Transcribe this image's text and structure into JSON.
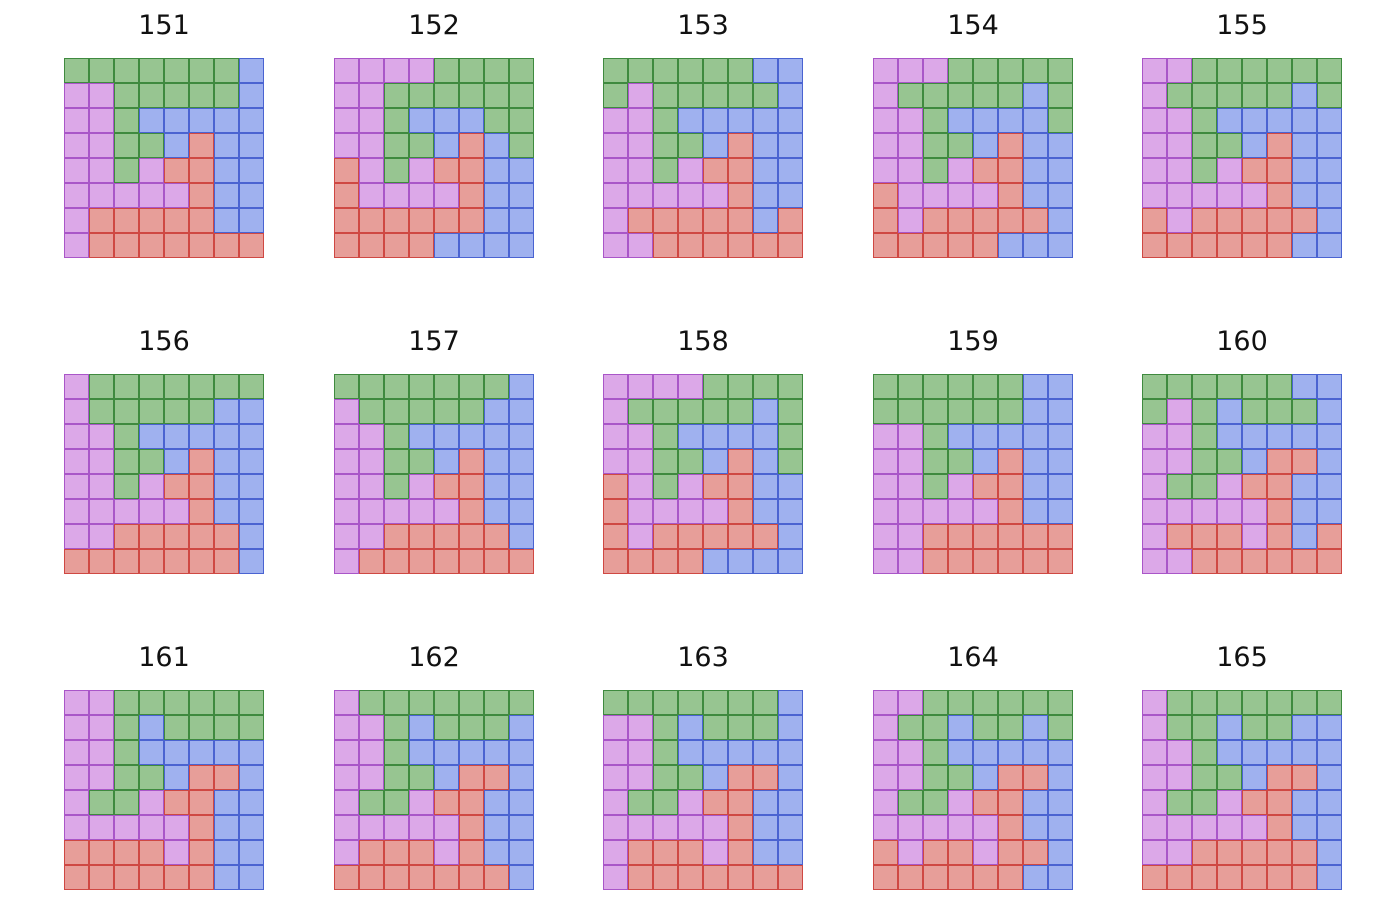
{
  "colors": {
    "G": {
      "fill": "#97c591",
      "line": "#3f8a3f"
    },
    "B": {
      "fill": "#9fb1ef",
      "line": "#4a63d1"
    },
    "R": {
      "fill": "#e79e99",
      "line": "#cf4843"
    },
    "P": {
      "fill": "#dca8e8",
      "line": "#a956c8"
    }
  },
  "panels": [
    {
      "title": "151",
      "rows": [
        "GGGGGGGB",
        "PPGGGGGB",
        "PPGBBBBB",
        "PPGGBRBB",
        "PPGPRRBB",
        "PPPPPRBB",
        "PRRRRRBB",
        "PRRRRRRR"
      ]
    },
    {
      "title": "152",
      "rows": [
        "PPPPGGGG",
        "PPGGGGGG",
        "PPGBBBGG",
        "PPGGBRBG",
        "RPGPRRBB",
        "RPPPPRBB",
        "RRRRRRBB",
        "RRRRBBBB"
      ]
    },
    {
      "title": "153",
      "rows": [
        "GGGGGGBB",
        "GPGGGGGB",
        "PPGBBBBB",
        "PPGGBRBB",
        "PPGPRRBB",
        "PPPPPRBB",
        "PRRRRRBR",
        "PPRRRRRR"
      ]
    },
    {
      "title": "154",
      "rows": [
        "PPPGGGGG",
        "PGGGGGBG",
        "PPGBBBBG",
        "PPGGBRBB",
        "PPGPRRBB",
        "RPPPPRBB",
        "RPRRRRRB",
        "RRRRRBBB"
      ]
    },
    {
      "title": "155",
      "rows": [
        "PPGGGGGG",
        "PGGGGGBG",
        "PPGBBBBB",
        "PPGGBRBB",
        "PPGPRRBB",
        "PPPPPRBB",
        "RPRRRRRB",
        "RRRRRRBB"
      ]
    },
    {
      "title": "156",
      "rows": [
        "PGGGGGGG",
        "PGGGGGBB",
        "PPGBBBBB",
        "PPGGBRBB",
        "PPGPRRBB",
        "PPPPPRBB",
        "PPRRRRRB",
        "RRRRRRRB"
      ]
    },
    {
      "title": "157",
      "rows": [
        "GGGGGGGB",
        "PGGGGGBB",
        "PPGBBBBB",
        "PPGGBRBB",
        "PPGPRRBB",
        "PPPPPRBB",
        "PPRRRRRB",
        "PRRRRRRR"
      ]
    },
    {
      "title": "158",
      "rows": [
        "PPPPGGGG",
        "PGGGGGBG",
        "PPGBBBBG",
        "PPGGBRBG",
        "RPGPRRBB",
        "RPPPPRBB",
        "RPRRRRRB",
        "RRRRBBBB"
      ]
    },
    {
      "title": "159",
      "rows": [
        "GGGGGGBB",
        "GGGGGGBB",
        "PPGBBBBB",
        "PPGGBRBB",
        "PPGPRRBB",
        "PPPPPRBB",
        "PPRRRRRR",
        "PPRRRRRR"
      ]
    },
    {
      "title": "160",
      "rows": [
        "GGGGGGBB",
        "GPGBGGGB",
        "PPGBBBBB",
        "PPGGBRRB",
        "PGGPRRBB",
        "PPPPPRBB",
        "PRRRPRBR",
        "PPRRRRRR"
      ]
    },
    {
      "title": "161",
      "rows": [
        "PPGGGGGG",
        "PPGBGGGG",
        "PPGBBBBB",
        "PPGGBRRB",
        "PGGPRRBB",
        "PPPPPRBB",
        "RRRRPRBB",
        "RRRRRRBB"
      ]
    },
    {
      "title": "162",
      "rows": [
        "PGGGGGGG",
        "PPGBGGGB",
        "PPGBBBBB",
        "PPGGBRRB",
        "PGGPRRBB",
        "PPPPPRBB",
        "PRRRPRBB",
        "RRRRRRRB"
      ]
    },
    {
      "title": "163",
      "rows": [
        "GGGGGGGB",
        "PPGBGGGB",
        "PPGBBBBB",
        "PPGGBRRB",
        "PGGPRRBB",
        "PPPPPRBB",
        "PRRRPRBB",
        "PRRRRRRR"
      ]
    },
    {
      "title": "164",
      "rows": [
        "PPGGGGGG",
        "PGGBGGBG",
        "PPGBBBBB",
        "PPGGBRRB",
        "PGGPRRBB",
        "PPPPPRBB",
        "RPRRPRRB",
        "RRRRRRBB"
      ]
    },
    {
      "title": "165",
      "rows": [
        "PGGGGGGG",
        "PGGBGGBB",
        "PPGBBBBB",
        "PPGGBRRB",
        "PGGPRRBB",
        "PPPPPRBB",
        "PPRRRRRB",
        "RRRRRRRB"
      ]
    }
  ]
}
